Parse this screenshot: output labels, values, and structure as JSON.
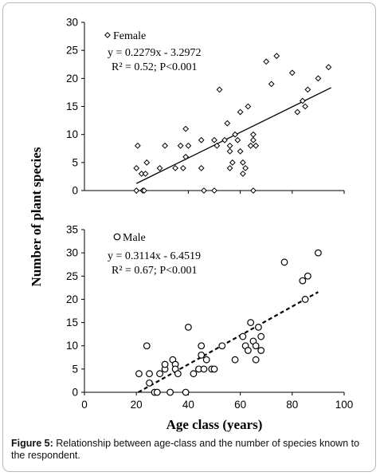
{
  "chart_data": [
    {
      "type": "scatter",
      "panel": "top",
      "legend": "Female",
      "legend_marker": "diamond",
      "equation": "y = 0.2279x - 3.2972",
      "stats": "R² = 0.52; P<0.001",
      "trendline": {
        "slope": 0.2279,
        "intercept": -3.2972,
        "x_range": [
          20,
          95
        ],
        "style": "solid"
      },
      "ylim": [
        0,
        30
      ],
      "yticks": [
        "0",
        "5",
        "10",
        "15",
        "20",
        "25",
        "30"
      ],
      "points": [
        [
          20,
          0
        ],
        [
          20,
          4
        ],
        [
          20.5,
          8
        ],
        [
          22,
          3
        ],
        [
          22.5,
          0
        ],
        [
          23,
          0
        ],
        [
          23.5,
          3
        ],
        [
          24,
          5
        ],
        [
          29,
          4
        ],
        [
          31,
          8
        ],
        [
          35,
          4
        ],
        [
          37,
          8
        ],
        [
          38,
          4
        ],
        [
          39,
          11
        ],
        [
          39,
          6
        ],
        [
          40,
          8
        ],
        [
          45,
          4
        ],
        [
          45,
          9
        ],
        [
          46,
          0
        ],
        [
          50,
          0
        ],
        [
          50,
          9
        ],
        [
          51,
          8
        ],
        [
          52,
          18
        ],
        [
          54,
          9
        ],
        [
          55,
          12
        ],
        [
          56,
          4
        ],
        [
          56,
          7
        ],
        [
          56,
          8
        ],
        [
          57,
          5
        ],
        [
          58,
          10
        ],
        [
          59,
          9
        ],
        [
          60,
          7
        ],
        [
          60,
          14
        ],
        [
          61,
          3
        ],
        [
          61,
          5
        ],
        [
          62,
          4
        ],
        [
          63,
          15
        ],
        [
          64,
          8
        ],
        [
          65,
          0
        ],
        [
          65,
          10
        ],
        [
          65,
          9
        ],
        [
          66,
          8
        ],
        [
          70,
          23
        ],
        [
          72,
          19
        ],
        [
          74,
          24
        ],
        [
          80,
          21
        ],
        [
          82,
          14
        ],
        [
          84,
          16
        ],
        [
          85,
          15
        ],
        [
          86,
          18
        ],
        [
          90,
          20
        ],
        [
          94,
          22
        ]
      ]
    },
    {
      "type": "scatter",
      "panel": "bottom",
      "legend": "Male",
      "legend_marker": "circle",
      "equation": "y = 0.3114x - 6.4519",
      "stats": "R² = 0.67; P<0.001",
      "trendline": {
        "slope": 0.3114,
        "intercept": -6.4519,
        "x_range": [
          20.7,
          90
        ],
        "style": "dashed"
      },
      "xlim": [
        0,
        100
      ],
      "ylim": [
        0,
        35
      ],
      "xticks": [
        "0",
        "20",
        "40",
        "60",
        "80",
        "100"
      ],
      "yticks": [
        "0",
        "5",
        "10",
        "15",
        "20",
        "25",
        "30",
        "35"
      ],
      "points": [
        [
          21,
          4
        ],
        [
          24,
          10
        ],
        [
          25,
          4
        ],
        [
          25,
          2
        ],
        [
          27,
          0
        ],
        [
          28,
          0
        ],
        [
          29,
          4
        ],
        [
          31,
          5
        ],
        [
          31,
          6
        ],
        [
          33,
          0
        ],
        [
          34,
          7
        ],
        [
          35,
          6
        ],
        [
          35,
          5
        ],
        [
          36,
          4
        ],
        [
          39,
          0
        ],
        [
          40,
          14
        ],
        [
          42,
          4
        ],
        [
          44,
          5
        ],
        [
          45,
          10
        ],
        [
          45,
          8
        ],
        [
          46,
          5
        ],
        [
          47,
          7
        ],
        [
          49,
          5
        ],
        [
          50,
          5
        ],
        [
          53,
          10
        ],
        [
          58,
          7
        ],
        [
          61,
          12
        ],
        [
          62,
          10
        ],
        [
          63,
          9
        ],
        [
          64,
          15
        ],
        [
          65,
          11
        ],
        [
          66,
          7
        ],
        [
          66,
          10
        ],
        [
          67,
          14
        ],
        [
          68,
          9
        ],
        [
          68,
          12
        ],
        [
          77,
          28
        ],
        [
          84,
          24
        ],
        [
          85,
          20
        ],
        [
          86,
          25
        ],
        [
          90,
          30
        ]
      ]
    }
  ],
  "xlabel": "Age class (years)",
  "ylabel": "Number of plant species",
  "caption": {
    "label": "Figure 5:",
    "text": " Relationship between age-class and the number of species known to the respondent."
  }
}
